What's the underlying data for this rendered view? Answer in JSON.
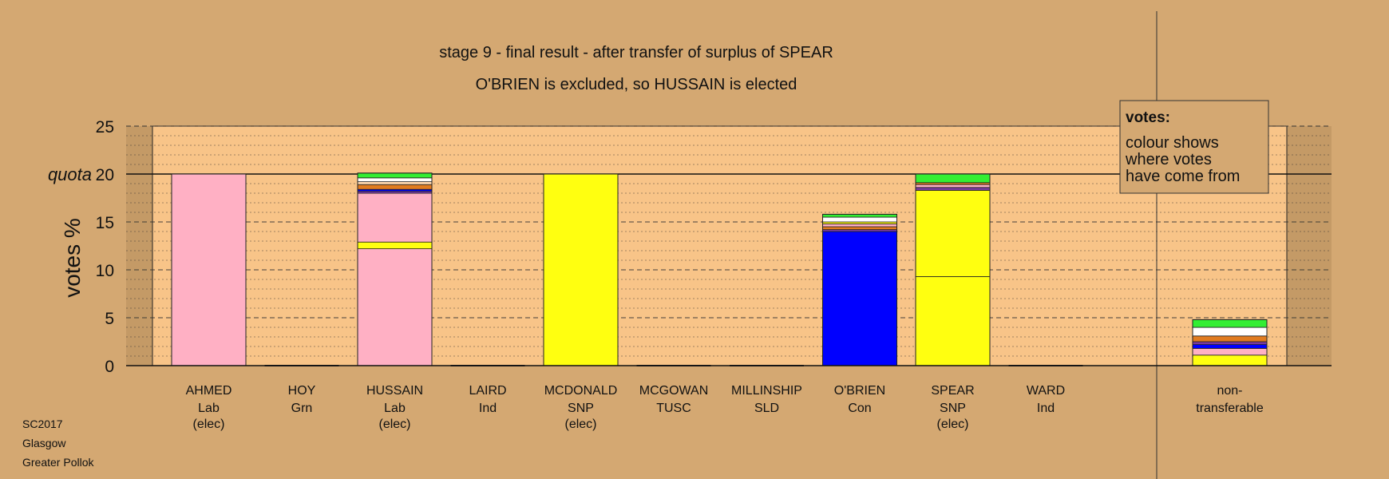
{
  "chart_data": {
    "type": "bar",
    "title": "stage 9 - final result - after transfer of surplus of SPEAR",
    "subtitle": "O'BRIEN is excluded, so HUSSAIN is elected",
    "ylabel": "votes %",
    "ylim": [
      0,
      25
    ],
    "yticks": [
      "0",
      "5",
      "10",
      "15",
      "20",
      "25"
    ],
    "quota_label": "quota",
    "quota": 20,
    "categories": [
      {
        "name": "AHMED",
        "party": "Lab",
        "status": "(elec)"
      },
      {
        "name": "HOY",
        "party": "Grn",
        "status": ""
      },
      {
        "name": "HUSSAIN",
        "party": "Lab",
        "status": "(elec)"
      },
      {
        "name": "LAIRD",
        "party": "Ind",
        "status": ""
      },
      {
        "name": "MCDONALD",
        "party": "SNP",
        "status": "(elec)"
      },
      {
        "name": "MCGOWAN",
        "party": "TUSC",
        "status": ""
      },
      {
        "name": "MILLINSHIP",
        "party": "SLD",
        "status": ""
      },
      {
        "name": "O'BRIEN",
        "party": "Con",
        "status": ""
      },
      {
        "name": "SPEAR",
        "party": "SNP",
        "status": "(elec)"
      },
      {
        "name": "WARD",
        "party": "Ind",
        "status": ""
      }
    ],
    "nontransferable_label": [
      "non-",
      "transferable"
    ],
    "stacks": [
      [
        {
          "value": 20.0,
          "color": "#ffb0c4"
        }
      ],
      [],
      [
        {
          "value": 12.2,
          "color": "#ffb0c4"
        },
        {
          "value": 0.7,
          "color": "#ffff10"
        },
        {
          "value": 5.1,
          "color": "#ffb0c4"
        },
        {
          "value": 0.2,
          "color": "#7a3aa0"
        },
        {
          "value": 0.2,
          "color": "#0000ff"
        },
        {
          "value": 0.5,
          "color": "#e07b20"
        },
        {
          "value": 0.3,
          "color": "#ffd8b0"
        },
        {
          "value": 0.4,
          "color": "#ffffff"
        },
        {
          "value": 0.5,
          "color": "#33ee33"
        }
      ],
      [],
      [
        {
          "value": 20.0,
          "color": "#ffff10"
        }
      ],
      [],
      [],
      [
        {
          "value": 14.0,
          "color": "#0000ff"
        },
        {
          "value": 0.2,
          "color": "#7a3aa0"
        },
        {
          "value": 0.3,
          "color": "#e07b20"
        },
        {
          "value": 0.3,
          "color": "#ffb0c4"
        },
        {
          "value": 0.2,
          "color": "#ffff10"
        },
        {
          "value": 0.5,
          "color": "#ffffff"
        },
        {
          "value": 0.3,
          "color": "#33ee33"
        }
      ],
      [
        {
          "value": 9.3,
          "color": "#ffff10"
        },
        {
          "value": 9.0,
          "color": "#ffff10"
        },
        {
          "value": 0.3,
          "color": "#7a3aa0"
        },
        {
          "value": 0.3,
          "color": "#ffb0c4"
        },
        {
          "value": 0.2,
          "color": "#e07b20"
        },
        {
          "value": 0.9,
          "color": "#33ee33"
        }
      ],
      []
    ],
    "nontransferable": [
      {
        "value": 1.1,
        "color": "#ffff10"
      },
      {
        "value": 0.7,
        "color": "#ffb0c4"
      },
      {
        "value": 0.4,
        "color": "#0000ff"
      },
      {
        "value": 0.3,
        "color": "#7a3aa0"
      },
      {
        "value": 0.6,
        "color": "#e07b20"
      },
      {
        "value": 0.9,
        "color": "#ffffff"
      },
      {
        "value": 0.8,
        "color": "#33ee33"
      }
    ],
    "legend": {
      "title": "votes:",
      "lines": [
        "colour shows",
        "where votes",
        "have come from"
      ]
    }
  },
  "footer": {
    "line1": "SC2017",
    "line2": "Glasgow",
    "line3": "Greater Pollok"
  },
  "colors": {
    "background": "#d4a872",
    "plot_area": "#f8c488",
    "shade": "#c49a66"
  }
}
